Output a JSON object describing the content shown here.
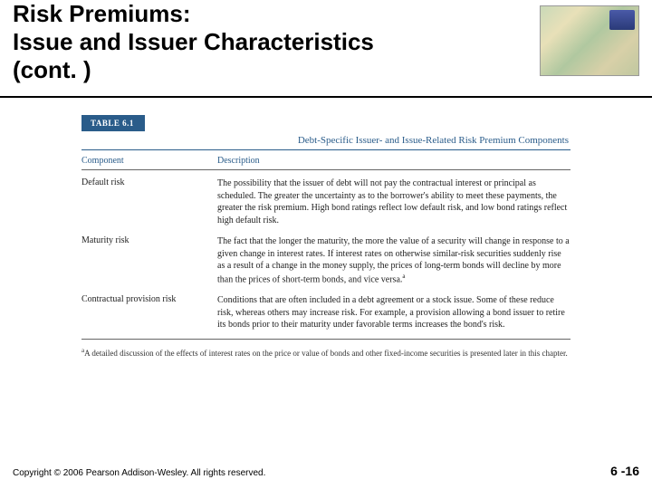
{
  "header": {
    "title_line1": "Risk Premiums:",
    "title_line2": "Issue and Issuer Characteristics",
    "title_line3": "(cont. )"
  },
  "table": {
    "label": "TABLE 6.1",
    "title": "Debt-Specific Issuer- and Issue-Related Risk Premium Components",
    "columns": {
      "c1": "Component",
      "c2": "Description"
    },
    "rows": [
      {
        "component": "Default risk",
        "description": "The possibility that the issuer of debt will not pay the contractual interest or principal as scheduled. The greater the uncertainty as to the borrower's ability to meet these payments, the greater the risk premium. High bond ratings reflect low default risk, and low bond ratings reflect high default risk."
      },
      {
        "component": "Maturity risk",
        "description": "The fact that the longer the maturity, the more the value of a security will change in response to a given change in interest rates. If interest rates on otherwise similar-risk securities suddenly rise as a result of a change in the money supply, the prices of long-term bonds will decline by more than the prices of short-term bonds, and vice versa."
      },
      {
        "component": "Contractual provision risk",
        "description": "Conditions that are often included in a debt agreement or a stock issue. Some of these reduce risk, whereas others may increase risk. For example, a provision allowing a bond issuer to retire its bonds prior to their maturity under favorable terms increases the bond's risk."
      }
    ],
    "footnote_marker": "a",
    "footnote": "A detailed discussion of the effects of interest rates on the price or value of bonds and other fixed-income securities is presented later in this chapter."
  },
  "footer": {
    "copyright": "Copyright © 2006 Pearson Addison-Wesley. All rights reserved.",
    "page": "6 -16"
  },
  "colors": {
    "accent": "#2a5c8a",
    "rule": "#666666",
    "text": "#222222"
  }
}
